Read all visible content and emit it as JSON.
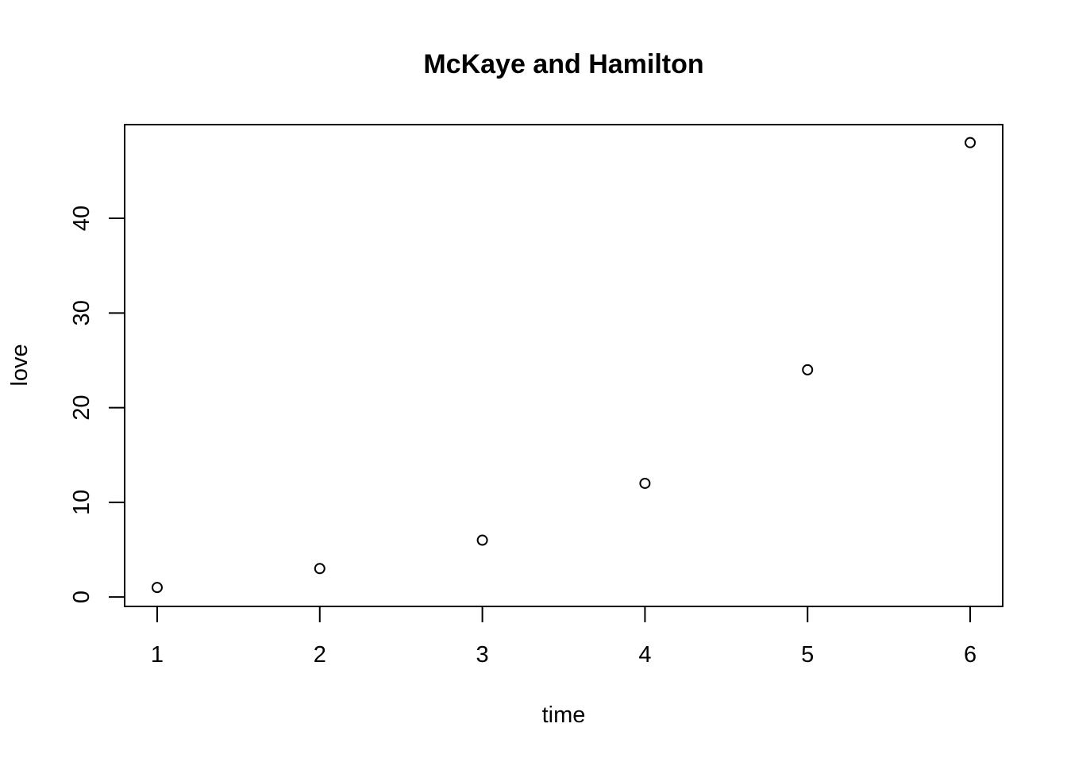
{
  "chart_data": {
    "type": "scatter",
    "title": "McKaye and Hamilton",
    "xlabel": "time",
    "ylabel": "love",
    "x": [
      1,
      2,
      3,
      4,
      5,
      6
    ],
    "y": [
      1,
      3,
      6,
      12,
      24,
      48
    ],
    "xlim": [
      0.8,
      6.2
    ],
    "ylim": [
      -1,
      49.9
    ],
    "xticks": [
      1,
      2,
      3,
      4,
      5,
      6
    ],
    "yticks": [
      0,
      10,
      20,
      30,
      40
    ],
    "marker": "open-circle",
    "grid": false,
    "colors": {
      "points": "#000000",
      "frame": "#000000"
    }
  }
}
